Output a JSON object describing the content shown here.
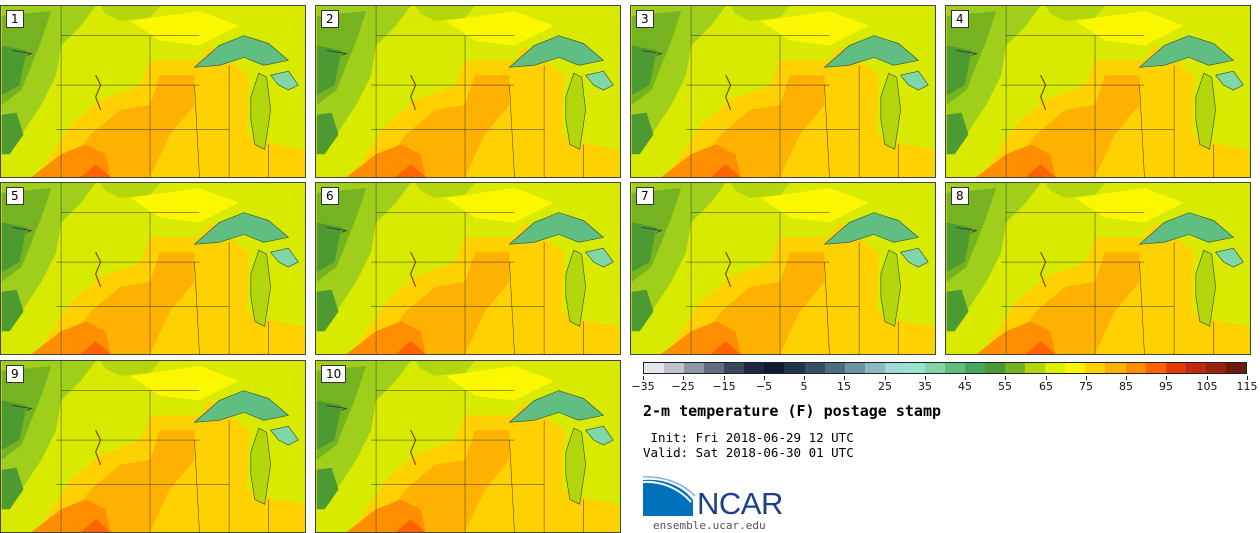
{
  "panels": [
    {
      "label": "1"
    },
    {
      "label": "2"
    },
    {
      "label": "3"
    },
    {
      "label": "4"
    },
    {
      "label": "5"
    },
    {
      "label": "6"
    },
    {
      "label": "7"
    },
    {
      "label": "8"
    },
    {
      "label": "9"
    },
    {
      "label": "10"
    }
  ],
  "colorbar": {
    "colors": [
      "#e3e6ec",
      "#bfc4cf",
      "#8f98a8",
      "#606b7e",
      "#3c465a",
      "#1e2740",
      "#0e1a30",
      "#23354c",
      "#355067",
      "#4d6d80",
      "#6b93a0",
      "#8dbac0",
      "#9fd9d6",
      "#98e4d4",
      "#80d6a6",
      "#60be83",
      "#47a55e",
      "#4c9a31",
      "#76b321",
      "#b4d60c",
      "#dcf000",
      "#fbf700",
      "#ffd100",
      "#ffb100",
      "#ff8e00",
      "#ff6200",
      "#e63b00",
      "#c02a10",
      "#9a2010",
      "#6b1a0e"
    ],
    "tick_labels": [
      "−35",
      "−25",
      "−15",
      "−5",
      "5",
      "15",
      "25",
      "35",
      "45",
      "55",
      "65",
      "75",
      "85",
      "95",
      "105",
      "115"
    ]
  },
  "title": "2-m temperature (F) postage stamp",
  "init_text": " Init: Fri 2018-06-29 12 UTC",
  "valid_text": "Valid: Sat 2018-06-30 01 UTC",
  "logo_text": "NCAR",
  "site": "ensemble.ucar.edu"
}
